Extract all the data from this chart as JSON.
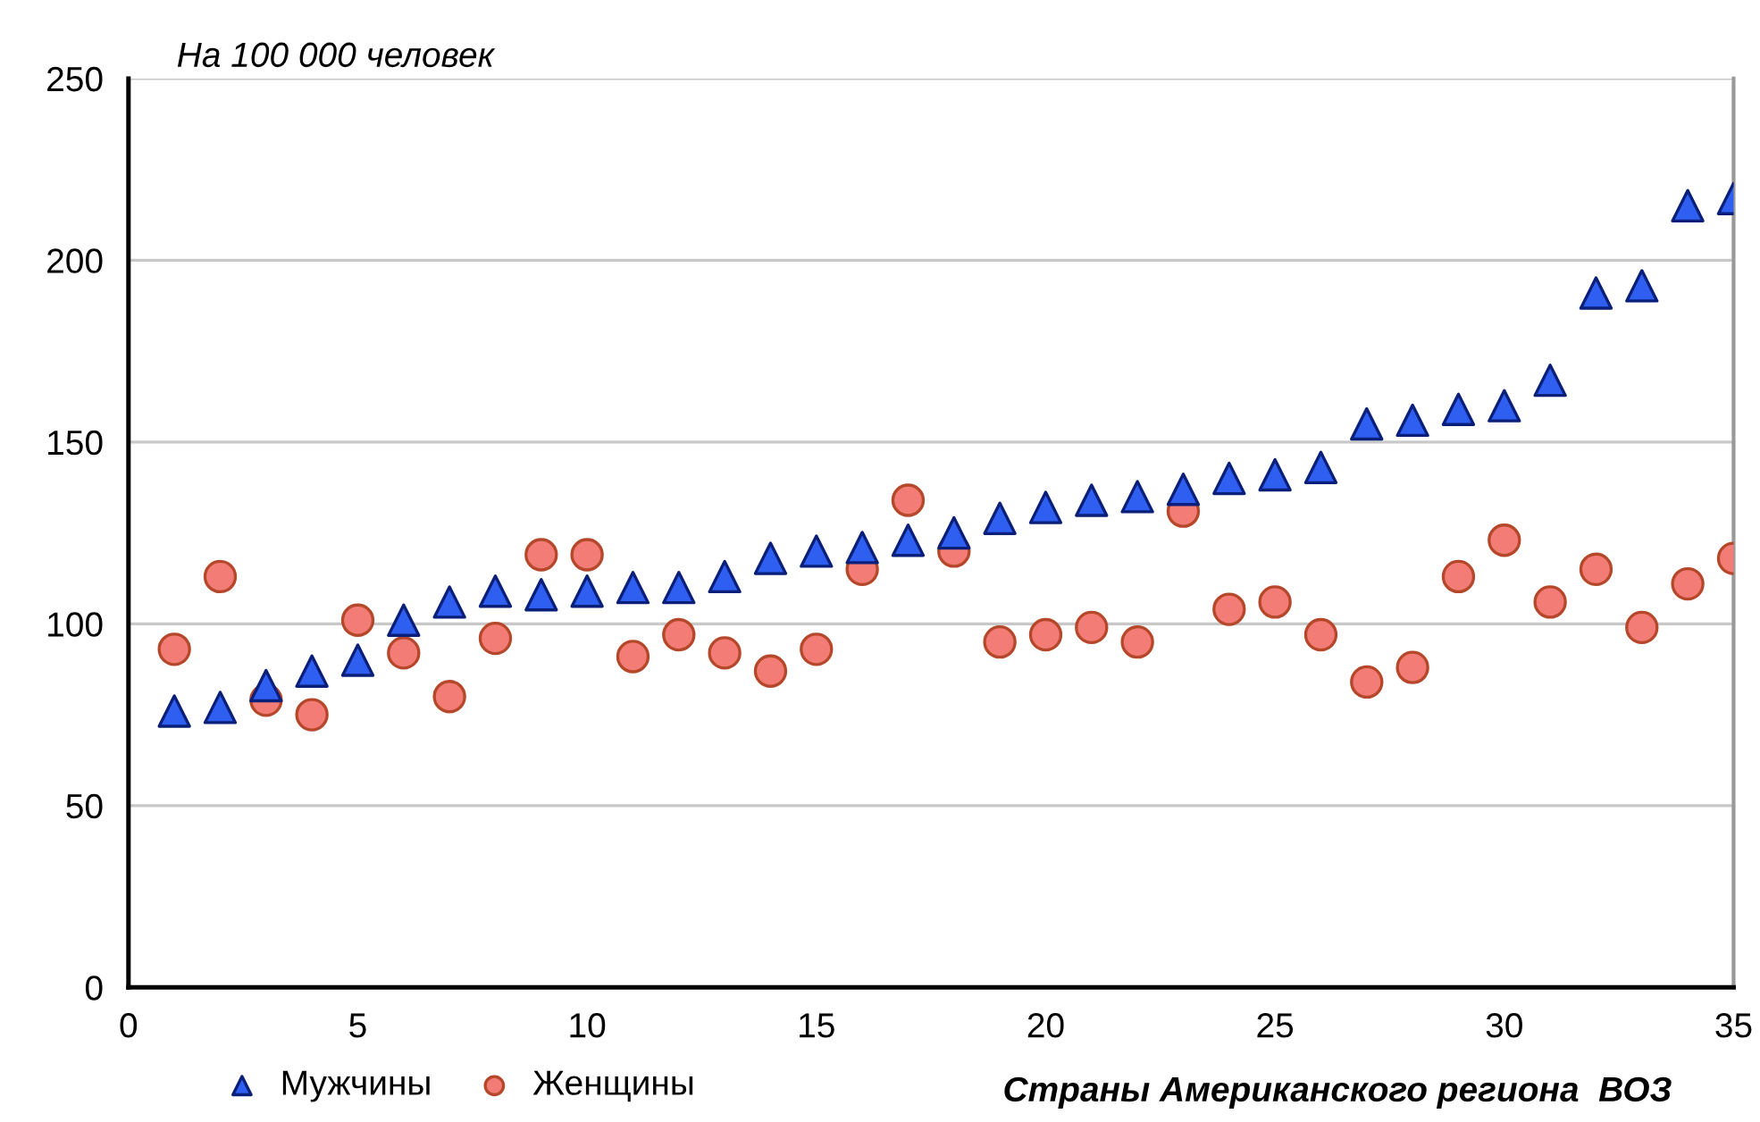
{
  "chart_data": {
    "type": "scatter",
    "title": "На 100 000 человек",
    "xlabel": "Страны Американского региона  ВОЗ",
    "x": [
      1,
      2,
      3,
      4,
      5,
      6,
      7,
      8,
      9,
      10,
      11,
      12,
      13,
      14,
      15,
      16,
      17,
      18,
      19,
      20,
      21,
      22,
      23,
      24,
      25,
      26,
      27,
      28,
      29,
      30,
      31,
      32,
      33,
      34,
      35
    ],
    "series": [
      {
        "name": "Мужчины",
        "color": "#2f5ff0",
        "marker": "triangle",
        "values": [
          76,
          77,
          83,
          87,
          90,
          101,
          106,
          109,
          108,
          109,
          110,
          110,
          113,
          118,
          120,
          121,
          123,
          125,
          129,
          132,
          134,
          135,
          137,
          140,
          141,
          143,
          155,
          156,
          159,
          160,
          167,
          191,
          193,
          215,
          217
        ]
      },
      {
        "name": "Женщины",
        "color": "#f47c76",
        "marker": "circle",
        "values": [
          93,
          113,
          79,
          75,
          101,
          92,
          80,
          96,
          119,
          119,
          91,
          97,
          92,
          87,
          93,
          115,
          134,
          120,
          95,
          97,
          99,
          95,
          131,
          104,
          106,
          97,
          84,
          88,
          113,
          123,
          106,
          115,
          99,
          111,
          118
        ]
      }
    ],
    "xlim": [
      0,
      35
    ],
    "xticks": [
      0,
      5,
      10,
      15,
      20,
      25,
      30,
      35
    ],
    "ylim": [
      0,
      250
    ],
    "yticks": [
      0,
      50,
      100,
      150,
      200,
      250
    ],
    "grid": "y",
    "legend": "bottom left"
  }
}
